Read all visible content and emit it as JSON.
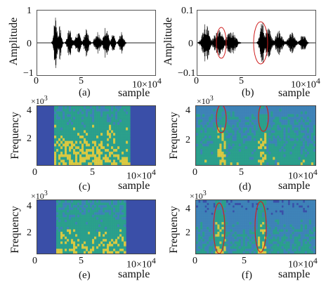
{
  "figure": {
    "panels": [
      {
        "id": "a",
        "caption": "(a)",
        "ylabel": "Amplitude",
        "xlabel": "sample",
        "yticks": [
          "1",
          "0",
          "−1"
        ],
        "xticks": [
          "0",
          "5",
          "10"
        ],
        "xmult": "×10",
        "xexp": "4"
      },
      {
        "id": "b",
        "caption": "(b)",
        "ylabel": "Amplitude",
        "xlabel": "sample",
        "yticks": [
          "0.1",
          "0",
          "−0.1"
        ],
        "xticks": [
          "0",
          "5",
          "10"
        ],
        "xmult": "×10",
        "xexp": "4"
      },
      {
        "id": "c",
        "caption": "(c)",
        "ylabel": "Frequency",
        "xlabel": "sample",
        "ymult": "×10",
        "yexp": "3",
        "yticks": [
          "4",
          "2"
        ],
        "xticks": [
          "0",
          "5",
          "10"
        ],
        "xmult": "×10",
        "xexp": "4"
      },
      {
        "id": "d",
        "caption": "(d)",
        "ylabel": "Frequency",
        "xlabel": "sample",
        "ymult": "×10",
        "yexp": "3",
        "yticks": [
          "4",
          "2"
        ],
        "xticks": [
          "0",
          "5",
          "10"
        ],
        "xmult": "×10",
        "xexp": "4"
      },
      {
        "id": "e",
        "caption": "(e)",
        "ylabel": "Frequency",
        "xlabel": "sample",
        "ymult": "×10",
        "yexp": "3",
        "yticks": [
          "4",
          "2"
        ],
        "xticks": [
          "0",
          "5",
          "10"
        ],
        "xmult": "×10",
        "xexp": "4"
      },
      {
        "id": "f",
        "caption": "(f)",
        "ylabel": "Frequency",
        "xlabel": "sample",
        "ymult": "×10",
        "yexp": "3",
        "yticks": [
          "4",
          "2"
        ],
        "xticks": [
          "0",
          "5",
          "10"
        ],
        "xmult": "×10",
        "xexp": "4"
      }
    ],
    "colors": {
      "waveform": "#000000",
      "highlight": "#d02020",
      "spec_low": "#3a4fa8",
      "spec_mid": "#2aa58a",
      "spec_high": "#e6d23a"
    }
  }
}
